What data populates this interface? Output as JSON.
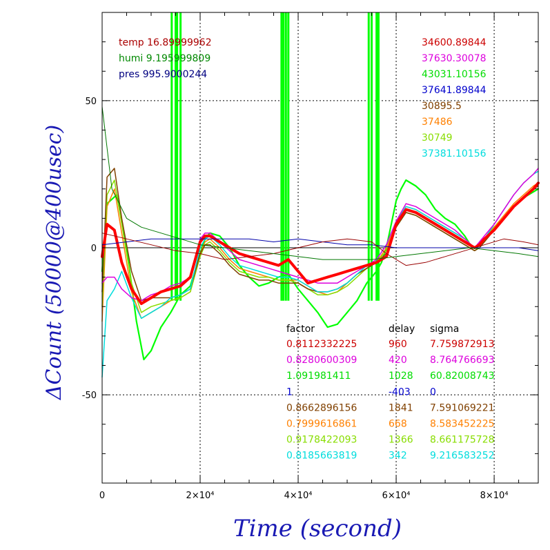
{
  "chart_data": {
    "type": "line",
    "xlabel": "Time (second)",
    "ylabel": "ΔCount (50000@400usec)",
    "xlim": [
      0,
      89000
    ],
    "ylim": [
      -80,
      80
    ],
    "x_ticks": [
      {
        "value": 0,
        "label": "0"
      },
      {
        "value": 20000,
        "label": "2×10⁴"
      },
      {
        "value": 40000,
        "label": "4×10⁴"
      },
      {
        "value": 60000,
        "label": "6×10⁴"
      },
      {
        "value": 80000,
        "label": "8×10⁴"
      }
    ],
    "y_ticks": [
      {
        "value": 50,
        "label": "50"
      },
      {
        "value": 0,
        "label": "0"
      },
      {
        "value": -50,
        "label": "-50"
      }
    ],
    "grid": "dotted at major ticks",
    "env_legend": [
      {
        "text": "temp 16.89999962",
        "color": "#aa0000"
      },
      {
        "text": "humi 9.195999809",
        "color": "#008800"
      },
      {
        "text": "pres 995.9000244",
        "color": "#000080"
      }
    ],
    "counts_legend": [
      {
        "text": "34600.89844",
        "color": "#cc0000"
      },
      {
        "text": "37630.30078",
        "color": "#dd00dd"
      },
      {
        "text": "43031.10156",
        "color": "#00dd00"
      },
      {
        "text": "37641.89844",
        "color": "#0000cc"
      },
      {
        "text": "30895.5",
        "color": "#804000"
      },
      {
        "text": "37486",
        "color": "#ff8000"
      },
      {
        "text": "30749",
        "color": "#88dd00"
      },
      {
        "text": "37381.10156",
        "color": "#00dddd"
      }
    ],
    "table": {
      "headers": [
        "factor",
        "delay",
        "sigma"
      ],
      "rows": [
        {
          "color": "#cc0000",
          "cells": [
            "0.8112332225",
            "960",
            "7.759872913"
          ]
        },
        {
          "color": "#dd00dd",
          "cells": [
            "0.8280600309",
            "420",
            "8.764766693"
          ]
        },
        {
          "color": "#00dd00",
          "cells": [
            "1.091981411",
            "1028",
            "60.82008743"
          ]
        },
        {
          "color": "#0000cc",
          "cells": [
            "1",
            "-403",
            "0"
          ]
        },
        {
          "color": "#804000",
          "cells": [
            "0.8662896156",
            "1841",
            "7.591069221"
          ]
        },
        {
          "color": "#ff8000",
          "cells": [
            "0.7999616861",
            "668",
            "8.583452225"
          ]
        },
        {
          "color": "#88dd00",
          "cells": [
            "0.9178422093",
            "1366",
            "8.661175728"
          ]
        },
        {
          "color": "#00dddd",
          "cells": [
            "0.8185663819",
            "342",
            "9.216583252"
          ]
        }
      ]
    },
    "series": [
      {
        "color": "#00ff00",
        "width": 2.2,
        "x": [
          0,
          1000,
          3000,
          5000,
          7000,
          8500,
          10000,
          12000,
          14000,
          16000,
          18000,
          20000,
          21000,
          22000,
          24000,
          26000,
          28000,
          30000,
          32000,
          34000,
          36000,
          38000,
          40000,
          42000,
          44000,
          46000,
          48000,
          50000,
          52000,
          54000,
          56000,
          57000,
          58000,
          59000,
          60000,
          61000,
          62000,
          64000,
          66000,
          68000,
          70000,
          72000,
          74000,
          75500,
          76500,
          77500,
          78500,
          80000,
          82000,
          84000,
          86000,
          88000,
          89000
        ],
        "y": [
          -8,
          15,
          18,
          0,
          -25,
          -38,
          -35,
          -27,
          -22,
          -16,
          -13,
          -2,
          3,
          5,
          4,
          0,
          -6,
          -10,
          -13,
          -12,
          -10,
          -9,
          -14,
          -18,
          -22,
          -27,
          -26,
          -22,
          -18,
          -12,
          -8,
          -5,
          0,
          8,
          16,
          20,
          23,
          21,
          18,
          13,
          10,
          8,
          4,
          0,
          0,
          2,
          4,
          7,
          10,
          14,
          17,
          19,
          20
        ]
      },
      {
        "color": "#ff8000",
        "width": 1.5,
        "x": [
          0,
          1000,
          2500,
          4000,
          6000,
          8000,
          10000,
          12000,
          14000,
          16000,
          18000,
          20000,
          21000,
          22000,
          24000,
          26000,
          28000,
          30000,
          32000,
          34000,
          36000,
          38000,
          40000,
          42000,
          44000,
          46000,
          48000,
          50000,
          52000,
          54000,
          56000,
          58000,
          60000,
          62000,
          64000,
          66000,
          68000,
          70000,
          72000,
          74000,
          76000,
          77000,
          78000,
          80000,
          82000,
          84000,
          86000,
          88000,
          89000
        ],
        "y": [
          -25,
          14,
          20,
          5,
          -15,
          -24,
          -22,
          -20,
          -18,
          -17,
          -15,
          -2,
          2,
          3,
          0,
          -4,
          -7,
          -8,
          -9,
          -10,
          -11,
          -11,
          -11,
          -13,
          -15,
          -16,
          -15,
          -12,
          -9,
          -7,
          -5,
          0,
          8,
          14,
          13,
          11,
          9,
          7,
          5,
          3,
          0,
          1,
          3,
          7,
          11,
          15,
          18,
          21,
          22
        ]
      },
      {
        "color": "#88dd00",
        "width": 1.5,
        "x": [
          0,
          1000,
          2500,
          4000,
          6000,
          8000,
          10000,
          12000,
          14000,
          16000,
          18000,
          20000,
          21000,
          22000,
          24000,
          26000,
          28000,
          30000,
          32000,
          34000,
          36000,
          38000,
          40000,
          42000,
          44000,
          46000,
          48000,
          50000,
          52000,
          54000,
          56000,
          58000,
          60000,
          62000,
          64000,
          66000,
          68000,
          70000,
          72000,
          74000,
          76000,
          77000,
          78000,
          80000,
          82000,
          84000,
          86000,
          88000,
          89000
        ],
        "y": [
          -20,
          18,
          23,
          8,
          -12,
          -22,
          -20,
          -19,
          -18,
          -17,
          -15,
          -3,
          1,
          2,
          -1,
          -5,
          -8,
          -9,
          -10,
          -10,
          -11,
          -11,
          -12,
          -14,
          -16,
          -16,
          -15,
          -13,
          -10,
          -7,
          -5,
          -1,
          7,
          12,
          11,
          9,
          7,
          5,
          3,
          1,
          -1,
          0,
          2,
          6,
          10,
          14,
          17,
          20,
          21
        ]
      },
      {
        "color": "#804000",
        "width": 1.5,
        "x": [
          0,
          1000,
          2500,
          4000,
          6000,
          8000,
          10000,
          12000,
          14000,
          16000,
          18000,
          20000,
          21000,
          22000,
          24000,
          26000,
          28000,
          30000,
          32000,
          34000,
          36000,
          38000,
          40000,
          42000,
          44000,
          46000,
          48000,
          50000,
          52000,
          54000,
          56000,
          58000,
          60000,
          62000,
          64000,
          66000,
          68000,
          70000,
          72000,
          74000,
          76000,
          77000,
          78000,
          80000,
          82000,
          84000,
          86000,
          88000,
          89000
        ],
        "y": [
          -15,
          24,
          27,
          10,
          -8,
          -18,
          -17,
          -17,
          -17,
          -16,
          -14,
          -2,
          1,
          1,
          -2,
          -6,
          -9,
          -10,
          -11,
          -11,
          -12,
          -12,
          -12,
          -14,
          -15,
          -15,
          -14,
          -12,
          -9,
          -7,
          -5,
          -2,
          7,
          12,
          11,
          9,
          7,
          5,
          3,
          1,
          -1,
          0,
          2,
          6,
          10,
          14,
          17,
          20,
          21
        ]
      },
      {
        "color": "#00dddd",
        "width": 1.5,
        "x": [
          0,
          1000,
          2500,
          4000,
          6000,
          8000,
          10000,
          12000,
          14000,
          16000,
          18000,
          20000,
          21000,
          22000,
          24000,
          26000,
          28000,
          30000,
          32000,
          34000,
          36000,
          38000,
          40000,
          42000,
          44000,
          46000,
          48000,
          50000,
          52000,
          54000,
          56000,
          58000,
          60000,
          62000,
          64000,
          66000,
          68000,
          70000,
          72000,
          74000,
          76000,
          77000,
          78000,
          80000,
          82000,
          84000,
          86000,
          88000,
          89000
        ],
        "y": [
          -44,
          -18,
          -14,
          -8,
          -17,
          -24,
          -22,
          -20,
          -17,
          -16,
          -14,
          0,
          3,
          4,
          1,
          -3,
          -6,
          -7,
          -8,
          -9,
          -10,
          -10,
          -11,
          -13,
          -15,
          -15,
          -14,
          -12,
          -9,
          -6,
          -4,
          1,
          9,
          14,
          13,
          11,
          9,
          7,
          5,
          3,
          0,
          1,
          3,
          8,
          13,
          18,
          22,
          25,
          26
        ]
      },
      {
        "color": "#dd00dd",
        "width": 1.5,
        "x": [
          0,
          1000,
          2500,
          4000,
          6000,
          8000,
          10000,
          12000,
          14000,
          16000,
          18000,
          20000,
          21000,
          22000,
          24000,
          26000,
          28000,
          30000,
          32000,
          34000,
          36000,
          38000,
          40000,
          42000,
          44000,
          46000,
          48000,
          50000,
          52000,
          54000,
          56000,
          58000,
          60000,
          62000,
          64000,
          66000,
          68000,
          70000,
          72000,
          74000,
          76000,
          77000,
          78000,
          80000,
          82000,
          84000,
          86000,
          88000,
          89000
        ],
        "y": [
          -12,
          -10,
          -10,
          -14,
          -17,
          -18,
          -16,
          -15,
          -13,
          -12,
          -10,
          3,
          5,
          5,
          2,
          -1,
          -4,
          -5,
          -6,
          -7,
          -8,
          -9,
          -10,
          -11,
          -12,
          -12,
          -12,
          -10,
          -8,
          -6,
          -4,
          1,
          9,
          15,
          14,
          12,
          10,
          8,
          6,
          3,
          0,
          2,
          4,
          8,
          13,
          18,
          22,
          25,
          27
        ]
      },
      {
        "color": "#ff0000",
        "width": 4,
        "x": [
          0,
          1000,
          2500,
          4000,
          6000,
          8000,
          10000,
          12000,
          14000,
          16000,
          18000,
          20000,
          21000,
          22000,
          24000,
          26000,
          28000,
          30000,
          32000,
          34000,
          36000,
          37000,
          38000,
          40000,
          42000,
          44000,
          46000,
          48000,
          50000,
          52000,
          54000,
          56000,
          58000,
          60000,
          62000,
          64000,
          66000,
          68000,
          70000,
          72000,
          74000,
          76000,
          77000,
          78000,
          80000,
          82000,
          84000,
          86000,
          88000,
          89000
        ],
        "y": [
          -3,
          8,
          6,
          -5,
          -14,
          -19,
          -17,
          -15,
          -14,
          -13,
          -10,
          2,
          4,
          4,
          2,
          0,
          -2,
          -3,
          -4,
          -5,
          -6,
          -5,
          -4,
          -8,
          -12,
          -11,
          -10,
          -9,
          -8,
          -7,
          -6,
          -5,
          -3,
          8,
          13,
          12,
          10,
          8,
          6,
          4,
          2,
          0,
          1,
          3,
          6,
          10,
          14,
          17,
          20,
          22
        ]
      },
      {
        "color": "#0000aa",
        "width": 1,
        "x": [
          0,
          5000,
          10000,
          15000,
          20000,
          25000,
          30000,
          35000,
          40000,
          45000,
          50000,
          55000,
          60000,
          65000,
          70000,
          75000,
          80000,
          85000,
          89000
        ],
        "y": [
          1,
          2,
          3,
          3,
          3,
          3,
          3,
          2,
          3,
          2,
          1,
          1,
          0,
          0,
          0,
          0,
          0,
          0,
          -1
        ]
      },
      {
        "color": "#990000",
        "width": 1,
        "x": [
          0,
          5000,
          10000,
          15000,
          20000,
          25000,
          30000,
          35000,
          40000,
          45000,
          50000,
          55000,
          58000,
          62000,
          66000,
          70000,
          74000,
          78000,
          82000,
          86000,
          89000
        ],
        "y": [
          5,
          3,
          1,
          -1,
          -2,
          -4,
          -3,
          -2,
          0,
          2,
          3,
          2,
          -2,
          -6,
          -5,
          -3,
          -1,
          1,
          3,
          2,
          1
        ]
      },
      {
        "color": "#007700",
        "width": 1,
        "x": [
          0,
          2000,
          5000,
          8000,
          12000,
          16000,
          20000,
          25000,
          30000,
          35000,
          40000,
          45000,
          50000,
          55000,
          60000,
          65000,
          70000,
          75000,
          80000,
          85000,
          89000
        ],
        "y": [
          48,
          20,
          10,
          7,
          5,
          3,
          1,
          0,
          -1,
          -2,
          -3,
          -4,
          -4,
          -4,
          -3,
          -2,
          -1,
          0,
          -1,
          -2,
          -3
        ]
      }
    ],
    "spikes": {
      "color": "#00ff00",
      "x": [
        14200,
        15000,
        15300,
        16000,
        36600,
        37000,
        37500,
        38000,
        54400,
        55000,
        56000,
        56400
      ],
      "y_low": -18,
      "y_high": 80
    }
  }
}
